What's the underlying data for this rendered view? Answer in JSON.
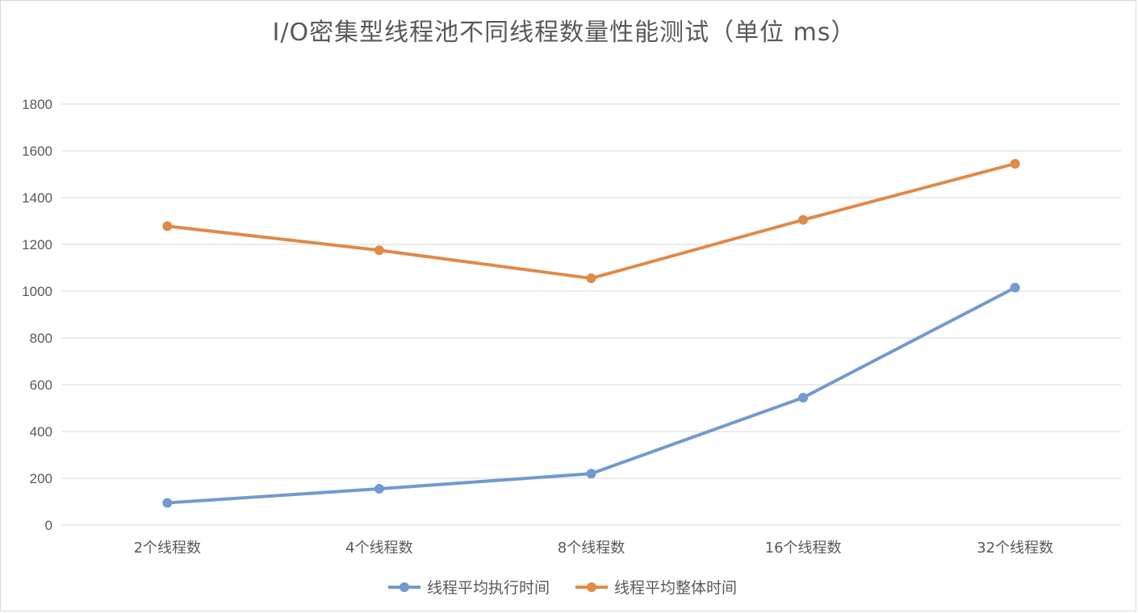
{
  "chart_data": {
    "type": "line",
    "title": "I/O密集型线程池不同线程数量性能测试（单位 ms）",
    "categories": [
      "2个线程数",
      "4个线程数",
      "8个线程数",
      "16个线程数",
      "32个线程数"
    ],
    "series": [
      {
        "name": "线程平均执行时间",
        "values": [
          95,
          155,
          220,
          545,
          1015
        ],
        "color": "#7399cf"
      },
      {
        "name": "线程平均整体时间",
        "values": [
          1278,
          1175,
          1055,
          1305,
          1545
        ],
        "color": "#e08a48"
      }
    ],
    "yticks": [
      0,
      200,
      400,
      600,
      800,
      1000,
      1200,
      1400,
      1600,
      1800
    ],
    "ylim": [
      0,
      1800
    ],
    "grid": true,
    "legend_position": "bottom"
  }
}
